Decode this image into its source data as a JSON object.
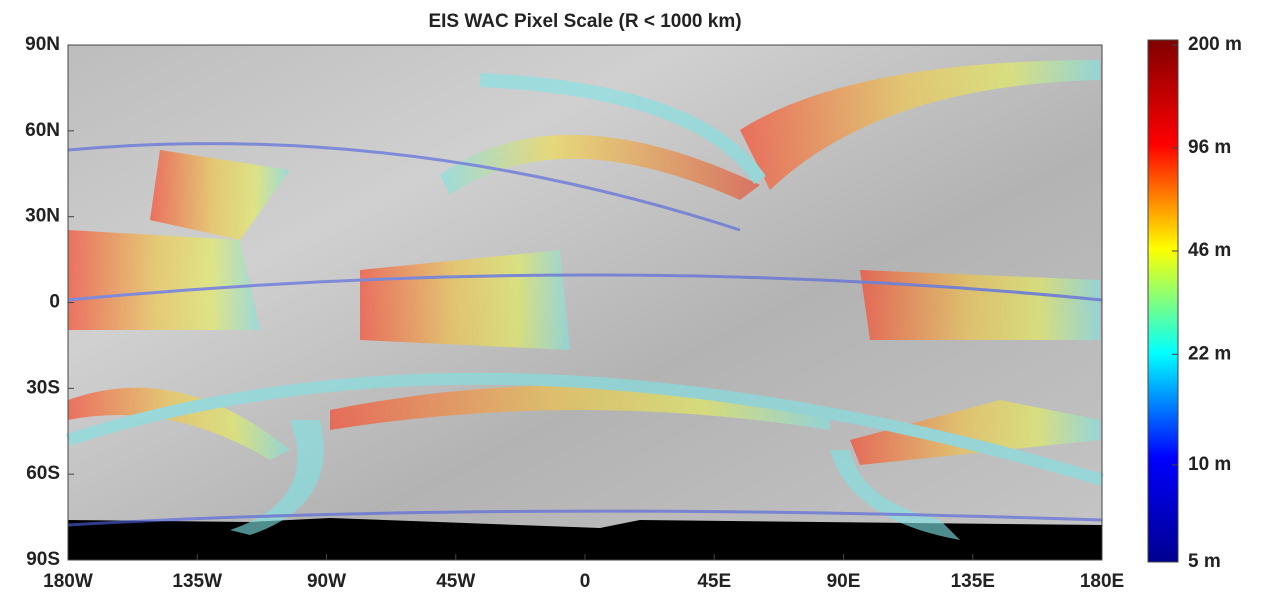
{
  "chart_data": {
    "type": "map",
    "title": "EIS WAC Pixel Scale (R < 1000 km)",
    "xlim": [
      -180,
      180
    ],
    "xticks": [
      {
        "value": -180,
        "label": "180W"
      },
      {
        "value": -135,
        "label": "135W"
      },
      {
        "value": -90,
        "label": "90W"
      },
      {
        "value": -45,
        "label": "45W"
      },
      0,
      {
        "value": 45,
        "label": "45E"
      },
      {
        "value": 90,
        "label": "90E"
      },
      {
        "value": 135,
        "label": "135E"
      },
      {
        "value": 180,
        "label": "180E"
      }
    ],
    "ylim": [
      -90,
      90
    ],
    "yticks": [
      {
        "value": 90,
        "label": "90N"
      },
      {
        "value": 60,
        "label": "60N"
      },
      {
        "value": 30,
        "label": "30N"
      },
      0,
      {
        "value": -30,
        "label": "30S"
      },
      {
        "value": -60,
        "label": "60S"
      },
      {
        "value": -90,
        "label": "90S"
      }
    ],
    "colorbar": {
      "lim": [
        5,
        200
      ],
      "log_scale": true,
      "ticks": [
        {
          "value": 200,
          "label": "200 m"
        },
        {
          "value": 96,
          "label": "96 m"
        },
        {
          "value": 46,
          "label": "46 m"
        },
        {
          "value": 22,
          "label": "22 m"
        },
        {
          "value": 10,
          "label": "10 m"
        },
        {
          "value": 5,
          "label": "5 m"
        }
      ],
      "colormap": [
        "#00008f",
        "#0000ff",
        "#00ffff",
        "#ffff00",
        "#ff0000",
        "#800000"
      ]
    }
  }
}
